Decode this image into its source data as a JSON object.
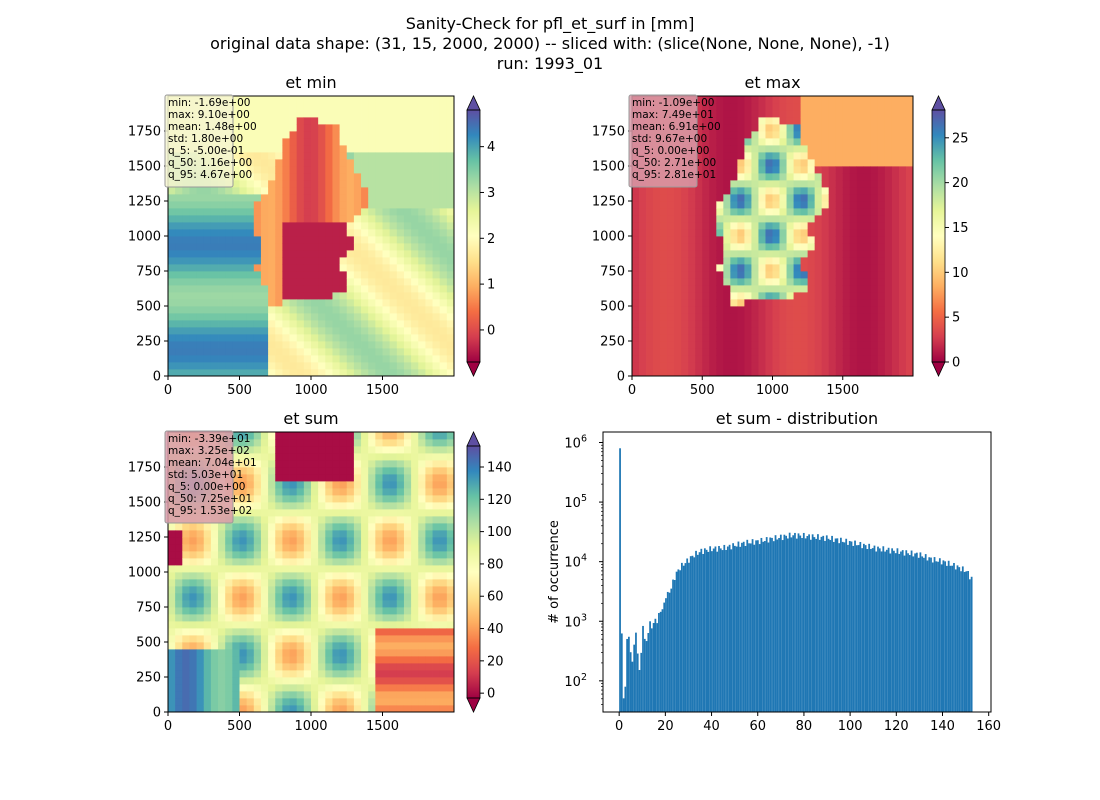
{
  "figure": {
    "title_lines": [
      "Sanity-Check for pfl_et_surf in [mm]",
      "original data shape: (31, 15, 2000, 2000) -- sliced with: (slice(None, None, None), -1)",
      "run: 1993_01"
    ]
  },
  "chart_data": [
    {
      "type": "heatmap",
      "title": "et min",
      "colormap": "Spectral",
      "xlim": [
        0,
        2000
      ],
      "ylim": [
        0,
        2000
      ],
      "xticks": [
        0,
        500,
        1000,
        1500
      ],
      "yticks": [
        0,
        250,
        500,
        750,
        1000,
        1250,
        1500,
        1750
      ],
      "colorbar": {
        "min": -0.7,
        "max": 4.8,
        "ticks": [
          0,
          1,
          2,
          3,
          4
        ],
        "extend": "both"
      },
      "stats": [
        "min: -1.69e+00",
        "max: 9.10e+00",
        "mean: 1.48e+00",
        "std: 1.80e+00",
        "q_5: -5.00e-01",
        "q_50: 1.16e+00",
        "q_95: 4.67e+00"
      ],
      "stats_box_color": "#f5f5d0"
    },
    {
      "type": "heatmap",
      "title": "et max",
      "colormap": "Spectral",
      "xlim": [
        0,
        2000
      ],
      "ylim": [
        0,
        2000
      ],
      "xticks": [
        0,
        500,
        1000,
        1500
      ],
      "yticks": [
        0,
        250,
        500,
        750,
        1000,
        1250,
        1500,
        1750
      ],
      "colorbar": {
        "min": 0,
        "max": 28.1,
        "ticks": [
          0,
          5,
          10,
          15,
          20,
          25
        ],
        "extend": "both"
      },
      "stats": [
        "min: -1.09e+00",
        "max: 7.49e+01",
        "mean: 6.91e+00",
        "std: 9.67e+00",
        "q_5: 0.00e+00",
        "q_50: 2.71e+00",
        "q_95: 2.81e+01"
      ],
      "stats_box_color": "#d89aa8"
    },
    {
      "type": "heatmap",
      "title": "et sum",
      "colormap": "Spectral",
      "xlim": [
        0,
        2000
      ],
      "ylim": [
        0,
        2000
      ],
      "xticks": [
        0,
        500,
        1000,
        1500
      ],
      "yticks": [
        0,
        250,
        500,
        750,
        1000,
        1250,
        1500,
        1750
      ],
      "colorbar": {
        "min": -3,
        "max": 153,
        "ticks": [
          0,
          20,
          40,
          60,
          80,
          100,
          120,
          140
        ],
        "extend": "both"
      },
      "stats": [
        "min: -3.39e+01",
        "max: 3.25e+02",
        "mean: 7.04e+01",
        "std: 5.03e+01",
        "q_5: 0.00e+00",
        "q_50: 7.25e+01",
        "q_95: 1.53e+02"
      ],
      "stats_box_color": "#d89aa8"
    },
    {
      "type": "bar",
      "title": "et sum - distribution",
      "xlabel": "",
      "ylabel": "# of occurrence",
      "yscale": "log",
      "xlim": [
        -7,
        161
      ],
      "ylim": [
        30,
        1500000
      ],
      "xticks": [
        0,
        20,
        40,
        60,
        80,
        100,
        120,
        140,
        160
      ],
      "yticks": [
        {
          "base": "10",
          "exp": "2",
          "value": 100
        },
        {
          "base": "10",
          "exp": "3",
          "value": 1000
        },
        {
          "base": "10",
          "exp": "4",
          "value": 10000
        },
        {
          "base": "10",
          "exp": "5",
          "value": 100000
        },
        {
          "base": "10",
          "exp": "6",
          "value": 1000000
        }
      ],
      "bar_color": "#1f77b4",
      "bin_width": 0.765,
      "profile": [
        [
          0.0,
          800000
        ],
        [
          0.8,
          450
        ],
        [
          1.5,
          50
        ],
        [
          2.3,
          80
        ],
        [
          3.0,
          500
        ],
        [
          3.8,
          560
        ],
        [
          4.6,
          300
        ],
        [
          5.3,
          200
        ],
        [
          6.1,
          400
        ],
        [
          6.9,
          650
        ],
        [
          7.6,
          300
        ],
        [
          8.4,
          150
        ],
        [
          9.2,
          300
        ],
        [
          10.0,
          900
        ],
        [
          11.0,
          400
        ],
        [
          12.0,
          550
        ],
        [
          13.0,
          1000
        ],
        [
          14.0,
          700
        ],
        [
          15.0,
          1200
        ],
        [
          16.0,
          900
        ],
        [
          17.0,
          1500
        ],
        [
          18.0,
          1400
        ],
        [
          19.0,
          2000
        ],
        [
          20.0,
          2500
        ],
        [
          22.0,
          3500
        ],
        [
          24.0,
          6000
        ],
        [
          26.0,
          8000
        ],
        [
          28.0,
          9500
        ],
        [
          30.0,
          11000
        ],
        [
          32.0,
          13000
        ],
        [
          35.0,
          15000
        ],
        [
          40.0,
          16500
        ],
        [
          45.0,
          17000
        ],
        [
          50.0,
          19000
        ],
        [
          55.0,
          21000
        ],
        [
          60.0,
          22000
        ],
        [
          65.0,
          24000
        ],
        [
          70.0,
          26000
        ],
        [
          75.0,
          28000
        ],
        [
          80.0,
          27000
        ],
        [
          85.0,
          26000
        ],
        [
          90.0,
          25000
        ],
        [
          95.0,
          23000
        ],
        [
          100.0,
          21000
        ],
        [
          105.0,
          19000
        ],
        [
          110.0,
          17000
        ],
        [
          115.0,
          16000
        ],
        [
          120.0,
          15000
        ],
        [
          125.0,
          14000
        ],
        [
          130.0,
          13000
        ],
        [
          135.0,
          11000
        ],
        [
          140.0,
          10000
        ],
        [
          145.0,
          8500
        ],
        [
          150.0,
          7000
        ],
        [
          152.5,
          5000
        ]
      ]
    }
  ]
}
